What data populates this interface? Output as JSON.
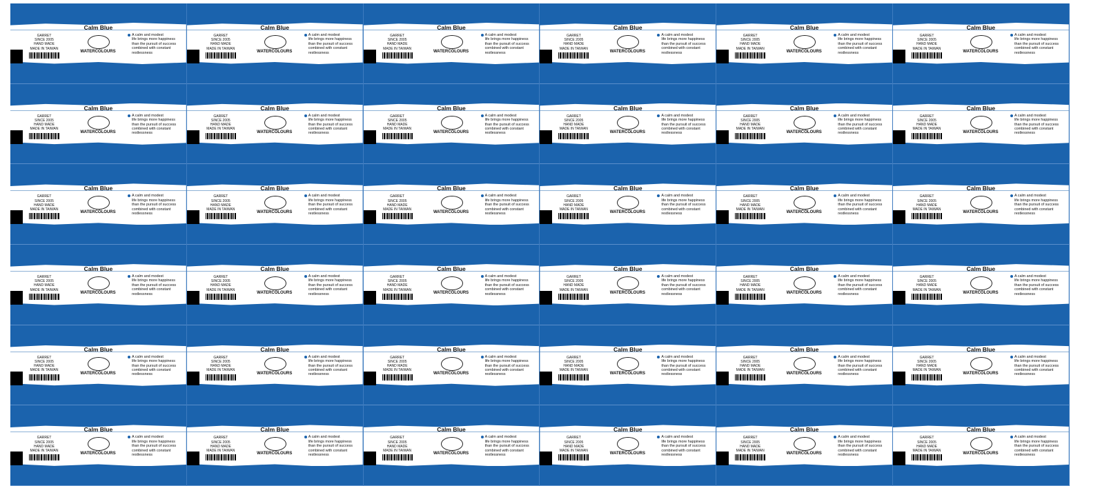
{
  "sheet": {
    "rows": 6,
    "columns": 6
  },
  "colors": {
    "band_blue": "#1b63ad",
    "text": "#111111"
  },
  "label": {
    "title": "Calm Blue",
    "left_lines": [
      "GARRET",
      "SINCE 2005",
      "HAND MADE",
      "MADE IN TAIWAN"
    ],
    "logo_text": "Garret",
    "product": "WATERCOLOURS",
    "quote_lines": [
      "A calm and modest",
      "life brings more happiness",
      "than the pursuit of success",
      "combined with constant",
      "restlessness"
    ]
  }
}
